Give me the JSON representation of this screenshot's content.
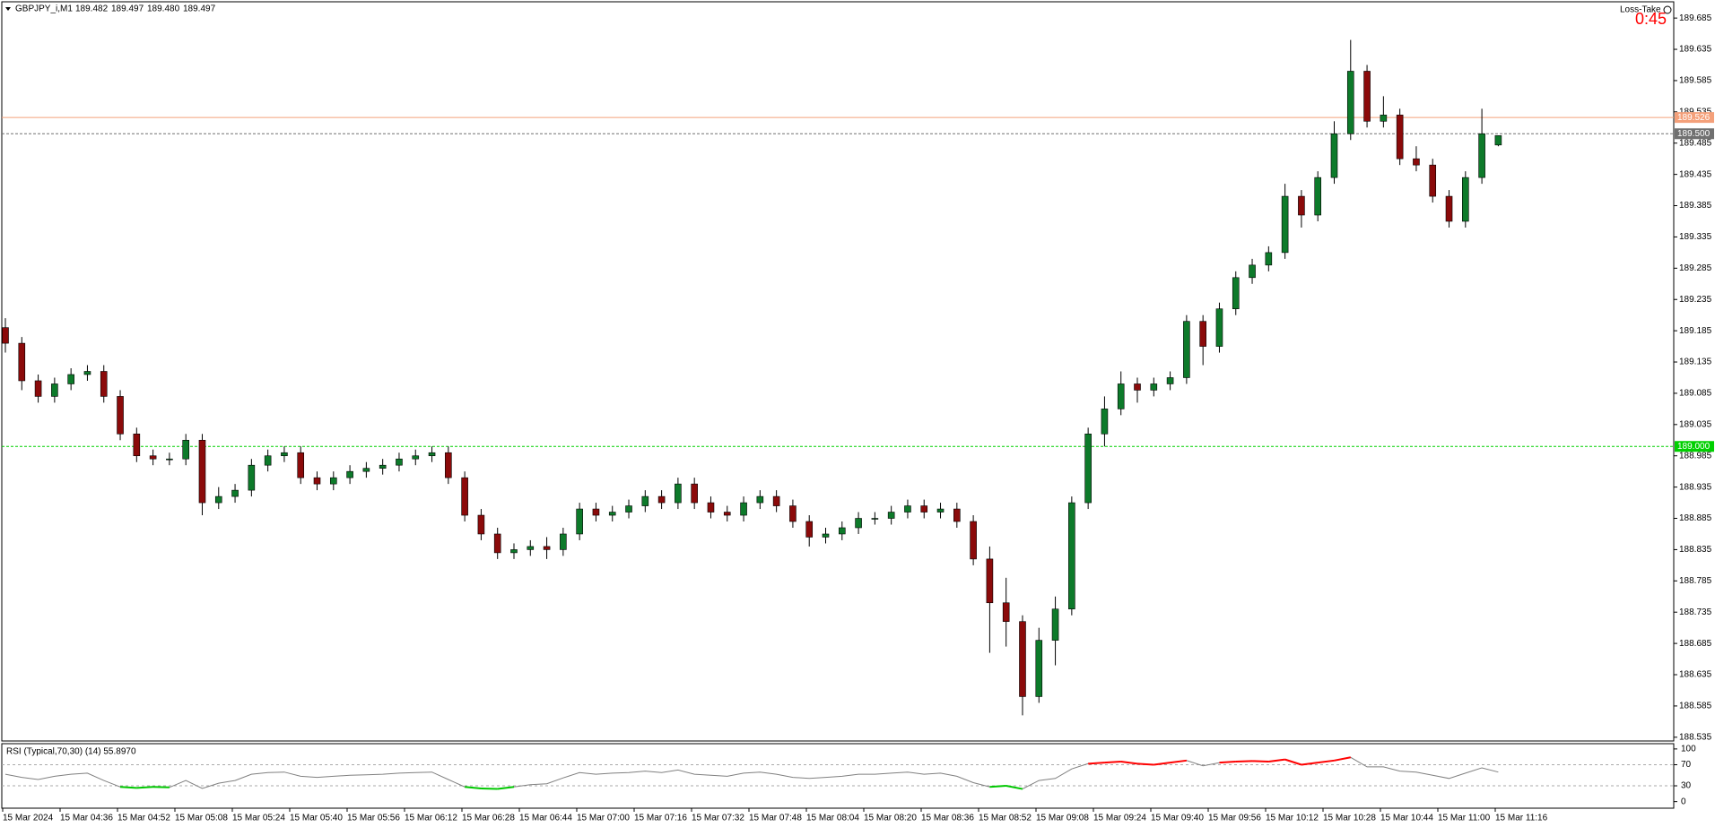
{
  "header": {
    "symbol": "GBPJPY_i,M1",
    "ohlc": [
      "189.482",
      "189.497",
      "189.480",
      "189.497"
    ]
  },
  "overlay": {
    "label": "Loss-Take",
    "timer": "0:45"
  },
  "chart_data": [
    {
      "type": "candlestick",
      "ylim": [
        188.529,
        189.711
      ],
      "yticks": [
        189.685,
        189.635,
        189.585,
        189.535,
        189.485,
        189.435,
        189.385,
        189.335,
        189.285,
        189.235,
        189.185,
        189.135,
        189.085,
        189.035,
        188.985,
        188.935,
        188.885,
        188.835,
        188.785,
        188.735,
        188.685,
        188.635,
        188.585,
        188.535
      ],
      "time_labels": [
        "15 Mar 2024",
        "15 Mar 04:36",
        "15 Mar 04:52",
        "15 Mar 05:08",
        "15 Mar 05:24",
        "15 Mar 05:40",
        "15 Mar 05:56",
        "15 Mar 06:12",
        "15 Mar 06:28",
        "15 Mar 06:44",
        "15 Mar 07:00",
        "15 Mar 07:16",
        "15 Mar 07:32",
        "15 Mar 07:48",
        "15 Mar 08:04",
        "15 Mar 08:20",
        "15 Mar 08:36",
        "15 Mar 08:52",
        "15 Mar 09:08",
        "15 Mar 09:24",
        "15 Mar 09:40",
        "15 Mar 09:56",
        "15 Mar 10:12",
        "15 Mar 10:28",
        "15 Mar 10:44",
        "15 Mar 11:00",
        "15 Mar 11:16"
      ],
      "up_color": "#0d7a2a",
      "down_color": "#8b0a0a",
      "wick_color": "#000000",
      "hlines": [
        {
          "price": 189.526,
          "label": "189.526",
          "color": "#f4a07a",
          "dash": false
        },
        {
          "price": 189.5,
          "label": "189.500",
          "color": "#707070",
          "dash": true
        },
        {
          "price": 189,
          "label": "189.000",
          "color": "#00d000",
          "dash": true
        }
      ],
      "open": [
        189.19,
        189.165,
        189.105,
        189.08,
        189.1,
        189.115,
        189.12,
        189.08,
        189.02,
        188.985,
        188.98,
        188.98,
        189.01,
        188.91,
        188.92,
        188.93,
        188.97,
        188.985,
        188.99,
        188.95,
        188.94,
        188.95,
        188.96,
        188.965,
        188.97,
        188.98,
        188.985,
        188.99,
        188.95,
        188.89,
        188.86,
        188.83,
        188.835,
        188.84,
        188.835,
        188.86,
        188.9,
        188.89,
        188.895,
        188.905,
        188.92,
        188.91,
        188.94,
        188.91,
        188.895,
        188.89,
        188.91,
        188.92,
        188.905,
        188.88,
        188.855,
        188.86,
        188.87,
        188.885,
        188.885,
        188.895,
        188.905,
        188.895,
        188.9,
        188.88,
        188.82,
        188.75,
        188.72,
        188.6,
        188.69,
        188.74,
        188.91,
        189.02,
        189.06,
        189.1,
        189.09,
        189.1,
        189.11,
        189.2,
        189.16,
        189.22,
        189.27,
        189.29,
        189.31,
        189.4,
        189.37,
        189.43,
        189.5,
        189.6,
        189.52,
        189.53,
        189.46,
        189.45,
        189.4,
        189.36,
        189.43,
        189.482
      ],
      "high": [
        189.205,
        189.175,
        189.115,
        189.11,
        189.125,
        189.13,
        189.13,
        189.09,
        189.03,
        188.995,
        188.99,
        189.02,
        189.02,
        188.935,
        188.94,
        188.98,
        188.995,
        189,
        189,
        188.96,
        188.96,
        188.97,
        188.975,
        188.98,
        188.99,
        188.995,
        189,
        189,
        188.96,
        188.9,
        188.87,
        188.845,
        188.85,
        188.855,
        188.87,
        188.91,
        188.91,
        188.905,
        188.915,
        188.93,
        188.93,
        188.95,
        188.95,
        188.92,
        188.905,
        188.92,
        188.93,
        188.93,
        188.915,
        188.89,
        188.87,
        188.88,
        188.895,
        188.895,
        188.905,
        188.915,
        188.915,
        188.91,
        188.91,
        188.89,
        188.84,
        188.79,
        188.73,
        188.71,
        188.76,
        188.92,
        189.03,
        189.08,
        189.12,
        189.11,
        189.11,
        189.12,
        189.21,
        189.21,
        189.23,
        189.28,
        189.3,
        189.32,
        189.42,
        189.41,
        189.44,
        189.52,
        189.65,
        189.61,
        189.56,
        189.54,
        189.48,
        189.46,
        189.41,
        189.44,
        189.54,
        189.497
      ],
      "low": [
        189.15,
        189.09,
        189.07,
        189.07,
        189.09,
        189.105,
        189.07,
        189.01,
        188.975,
        188.97,
        188.97,
        188.97,
        188.89,
        188.9,
        188.91,
        188.92,
        188.96,
        188.975,
        188.94,
        188.93,
        188.93,
        188.94,
        188.95,
        188.955,
        188.96,
        188.97,
        188.975,
        188.94,
        188.88,
        188.85,
        188.82,
        188.82,
        188.825,
        188.82,
        188.825,
        188.85,
        188.88,
        188.88,
        188.885,
        188.895,
        188.9,
        188.9,
        188.9,
        188.885,
        188.88,
        188.88,
        188.9,
        188.895,
        188.87,
        188.84,
        188.845,
        188.85,
        188.86,
        188.875,
        188.875,
        188.885,
        188.885,
        188.885,
        188.87,
        188.81,
        188.67,
        188.68,
        188.57,
        188.59,
        188.65,
        188.73,
        188.9,
        189,
        189.05,
        189.07,
        189.08,
        189.09,
        189.1,
        189.13,
        189.15,
        189.21,
        189.26,
        189.28,
        189.3,
        189.35,
        189.36,
        189.42,
        189.49,
        189.51,
        189.51,
        189.45,
        189.44,
        189.39,
        189.35,
        189.35,
        189.42,
        189.48
      ],
      "close": [
        189.165,
        189.105,
        189.08,
        189.1,
        189.115,
        189.12,
        189.08,
        189.02,
        188.985,
        188.98,
        188.98,
        189.01,
        188.91,
        188.92,
        188.93,
        188.97,
        188.985,
        188.99,
        188.95,
        188.94,
        188.95,
        188.96,
        188.965,
        188.97,
        188.98,
        188.985,
        188.99,
        188.95,
        188.89,
        188.86,
        188.83,
        188.835,
        188.84,
        188.835,
        188.86,
        188.9,
        188.89,
        188.895,
        188.905,
        188.92,
        188.91,
        188.94,
        188.91,
        188.895,
        188.89,
        188.91,
        188.92,
        188.905,
        188.88,
        188.855,
        188.86,
        188.87,
        188.885,
        188.885,
        188.895,
        188.905,
        188.895,
        188.9,
        188.88,
        188.82,
        188.75,
        188.72,
        188.6,
        188.69,
        188.74,
        188.91,
        189.02,
        189.06,
        189.1,
        189.09,
        189.1,
        189.11,
        189.2,
        189.16,
        189.22,
        189.27,
        189.29,
        189.31,
        189.4,
        189.37,
        189.43,
        189.5,
        189.6,
        189.52,
        189.53,
        189.46,
        189.45,
        189.4,
        189.36,
        189.43,
        189.5,
        189.497
      ]
    },
    {
      "type": "line",
      "title": "RSI (Typical,70,30) (14) 55.8970",
      "ylim": [
        -12.5,
        110
      ],
      "yticks": [
        100,
        70,
        30,
        0
      ],
      "levels": [
        70,
        30
      ],
      "color": "#808080",
      "above_color": "#ff0000",
      "below_color": "#00c800",
      "values": [
        52,
        46,
        42,
        48,
        52,
        54,
        40,
        28,
        26,
        28,
        27,
        40,
        25,
        35,
        40,
        52,
        55,
        56,
        48,
        46,
        48,
        50,
        51,
        52,
        54,
        55,
        56,
        42,
        28,
        25,
        24,
        28,
        32,
        34,
        45,
        55,
        52,
        54,
        55,
        58,
        55,
        60,
        52,
        50,
        48,
        54,
        56,
        52,
        46,
        44,
        46,
        48,
        52,
        52,
        54,
        56,
        52,
        54,
        48,
        36,
        28,
        30,
        24,
        40,
        44,
        62,
        72,
        74,
        76,
        72,
        70,
        74,
        78,
        68,
        74,
        76,
        77,
        76,
        80,
        70,
        74,
        78,
        84,
        66,
        66,
        58,
        56,
        50,
        44,
        54,
        64,
        56
      ]
    }
  ]
}
